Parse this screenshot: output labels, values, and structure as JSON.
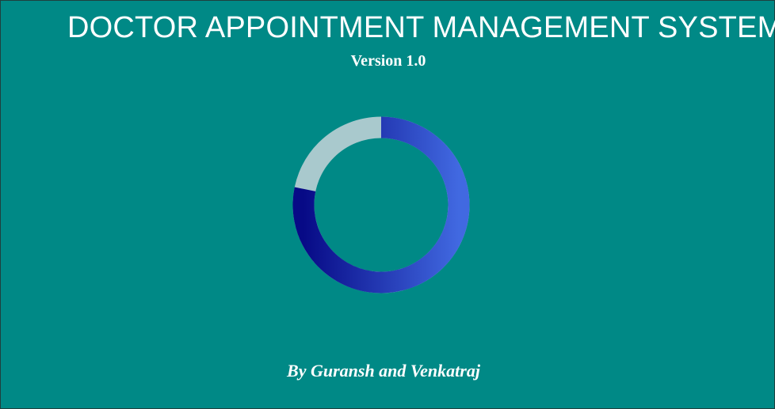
{
  "app": {
    "title": "DOCTOR APPOINTMENT MANAGEMENT SYSTEM",
    "version": "Version 1.0",
    "credits": "By Guransh and Venkatraj"
  },
  "loader": {
    "icon": "loading-spinner-icon",
    "progress_segment_fraction": 0.8,
    "colors": {
      "background": "#008986",
      "track": "#a9c9cd",
      "gradient_start": "#070a86",
      "gradient_end": "#4169e1"
    }
  }
}
